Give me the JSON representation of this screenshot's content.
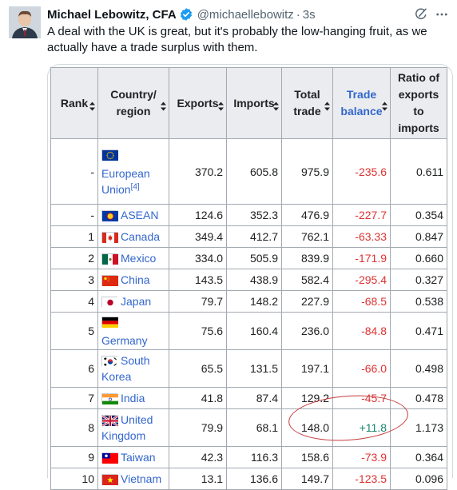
{
  "tweet": {
    "author_name": "Michael Lebowitz, CFA",
    "handle": "@michaellebowitz",
    "separator": "·",
    "time": "3s",
    "text": "A deal with the UK is great, but it's probably the low-hanging fruit, as we actually have a trade surplus with them."
  },
  "icons": {
    "avatar": "avatar",
    "verified": "verified-badge-icon",
    "grok": "grok-icon",
    "more": "more-icon",
    "sort": "sort-icon"
  },
  "colors": {
    "negative": "#dd3333",
    "positive": "#14866d",
    "link": "#3366cc",
    "header_bg": "#eaecf0",
    "circle": "#c43b3b"
  },
  "table": {
    "headers": {
      "rank": "Rank",
      "country": "Country/\nregion",
      "exports": "Exports",
      "imports": "Imports",
      "total": "Total\ntrade",
      "balance": "Trade\nbalance",
      "ratio": "Ratio of\nexports\nto\nimports"
    },
    "rows": [
      {
        "rank": "-",
        "flag": "eu",
        "country": "European Union",
        "note": "[4]",
        "exports": "370.2",
        "imports": "605.8",
        "total": "975.9",
        "balance": "-235.6",
        "ratio": "0.611"
      },
      {
        "rank": "-",
        "flag": "asean",
        "country": "ASEAN",
        "note": "",
        "exports": "124.6",
        "imports": "352.3",
        "total": "476.9",
        "balance": "-227.7",
        "ratio": "0.354"
      },
      {
        "rank": "1",
        "flag": "canada",
        "country": "Canada",
        "note": "",
        "exports": "349.4",
        "imports": "412.7",
        "total": "762.1",
        "balance": "-63.33",
        "ratio": "0.847"
      },
      {
        "rank": "2",
        "flag": "mexico",
        "country": "Mexico",
        "note": "",
        "exports": "334.0",
        "imports": "505.9",
        "total": "839.9",
        "balance": "-171.9",
        "ratio": "0.660"
      },
      {
        "rank": "3",
        "flag": "china",
        "country": "China",
        "note": "",
        "exports": "143.5",
        "imports": "438.9",
        "total": "582.4",
        "balance": "-295.4",
        "ratio": "0.327"
      },
      {
        "rank": "4",
        "flag": "japan",
        "country": "Japan",
        "note": "",
        "exports": "79.7",
        "imports": "148.2",
        "total": "227.9",
        "balance": "-68.5",
        "ratio": "0.538"
      },
      {
        "rank": "5",
        "flag": "germany",
        "country": "Germany",
        "note": "",
        "exports": "75.6",
        "imports": "160.4",
        "total": "236.0",
        "balance": "-84.8",
        "ratio": "0.471"
      },
      {
        "rank": "6",
        "flag": "korea",
        "country": "South Korea",
        "note": "",
        "exports": "65.5",
        "imports": "131.5",
        "total": "197.1",
        "balance": "-66.0",
        "ratio": "0.498"
      },
      {
        "rank": "7",
        "flag": "india",
        "country": "India",
        "note": "",
        "exports": "41.8",
        "imports": "87.4",
        "total": "129.2",
        "balance": "-45.7",
        "ratio": "0.478"
      },
      {
        "rank": "8",
        "flag": "uk",
        "country": "United Kingdom",
        "note": "",
        "exports": "79.9",
        "imports": "68.1",
        "total": "148.0",
        "balance": "+11.8",
        "ratio": "1.173"
      },
      {
        "rank": "9",
        "flag": "taiwan",
        "country": "Taiwan",
        "note": "",
        "exports": "42.3",
        "imports": "116.3",
        "total": "158.6",
        "balance": "-73.9",
        "ratio": "0.364"
      },
      {
        "rank": "10",
        "flag": "vietnam",
        "country": "Vietnam",
        "note": "",
        "exports": "13.1",
        "imports": "136.6",
        "total": "149.7",
        "balance": "-123.5",
        "ratio": "0.096"
      }
    ]
  }
}
